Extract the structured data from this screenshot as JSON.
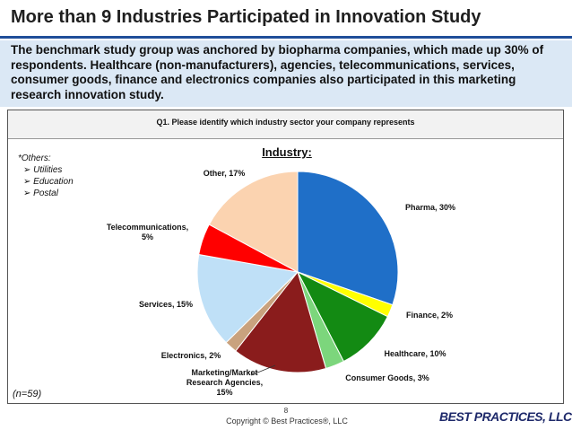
{
  "header": {
    "title": "More than 9 Industries Participated in Innovation Study",
    "summary": "The benchmark study group was anchored by biopharma companies, which made up 30% of respondents. Healthcare (non-manufacturers), agencies, telecommunications, services, consumer goods, finance and electronics companies also participated in this marketing research innovation study."
  },
  "chart_data": {
    "type": "pie",
    "question": "Q1. Please identify which industry sector your company represents",
    "title": "Industry:",
    "labels": [
      "Pharma, 30%",
      "Finance, 2%",
      "Healthcare, 10%",
      "Consumer Goods, 3%",
      "Marketing/Market Research Agencies, 15%",
      "Electronics, 2%",
      "Services, 15%",
      "Telecommunications, 5%",
      "Other, 17%"
    ],
    "values": [
      30,
      2,
      10,
      3,
      15,
      2,
      15,
      5,
      17
    ],
    "colors": [
      "#1f6fc8",
      "#ffff00",
      "#138a13",
      "#7cd67c",
      "#8a1c1c",
      "#c9a27e",
      "#bfe0f7",
      "#ff0000",
      "#fbd3b0"
    ]
  },
  "notes": {
    "others_title": "*Others:",
    "others": [
      "Utilities",
      "Education",
      "Postal"
    ],
    "sample": "(n=59)"
  },
  "footer": {
    "page": "8",
    "copyright": "Copyright © Best Practices®, LLC",
    "logo": "BEST PRACTICES, LLC"
  }
}
